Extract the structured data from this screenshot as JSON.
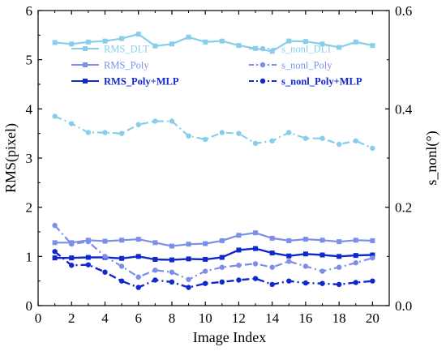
{
  "colors": {
    "dlt": "#87CEEB",
    "poly": "#7B8FE8",
    "polymlp": "#1028CC"
  },
  "chart_data": {
    "type": "line",
    "xlabel": "Image Index",
    "ylabel_left": "RMS(pixel)",
    "ylabel_right": "s_nonl(°)",
    "x": [
      1,
      2,
      3,
      4,
      5,
      6,
      7,
      8,
      9,
      10,
      11,
      12,
      13,
      14,
      15,
      16,
      17,
      18,
      19,
      20
    ],
    "xlim": [
      0,
      21
    ],
    "ylim_left": [
      0,
      6
    ],
    "ylim_right": [
      0,
      0.6
    ],
    "x_ticks": [
      "0",
      "2",
      "4",
      "6",
      "8",
      "10",
      "12",
      "14",
      "16",
      "18",
      "20"
    ],
    "y_ticks_left": [
      "0",
      "1",
      "2",
      "3",
      "4",
      "5",
      "6"
    ],
    "y_ticks_right": [
      "0.0",
      "0.2",
      "0.4",
      "0.6"
    ],
    "grid": false,
    "legend_position": "top",
    "series": [
      {
        "name": "RMS_DLT",
        "axis": "left",
        "style": "solid",
        "marker": "square",
        "color_key": "dlt",
        "values": [
          5.35,
          5.32,
          5.36,
          5.38,
          5.43,
          5.52,
          5.28,
          5.32,
          5.46,
          5.36,
          5.38,
          5.29,
          5.23,
          5.17,
          5.38,
          5.37,
          5.32,
          5.25,
          5.36,
          5.29
        ]
      },
      {
        "name": "RMS_Poly",
        "axis": "left",
        "style": "solid",
        "marker": "square",
        "color_key": "poly",
        "values": [
          1.28,
          1.28,
          1.33,
          1.31,
          1.33,
          1.35,
          1.28,
          1.21,
          1.25,
          1.26,
          1.32,
          1.43,
          1.48,
          1.37,
          1.32,
          1.35,
          1.33,
          1.3,
          1.33,
          1.32
        ]
      },
      {
        "name": "RMS_Poly+MLP",
        "axis": "left",
        "style": "solid",
        "marker": "square",
        "color_key": "polymlp",
        "values": [
          0.97,
          0.97,
          0.98,
          0.98,
          0.96,
          1.0,
          0.94,
          0.93,
          0.95,
          0.94,
          0.98,
          1.13,
          1.16,
          1.07,
          1.01,
          1.05,
          1.03,
          1.0,
          1.02,
          1.03
        ]
      },
      {
        "name": "s_nonl_DLT",
        "axis": "right",
        "style": "dashdot",
        "marker": "circle",
        "color_key": "dlt",
        "values": [
          0.385,
          0.37,
          0.352,
          0.352,
          0.35,
          0.368,
          0.375,
          0.375,
          0.345,
          0.338,
          0.352,
          0.35,
          0.33,
          0.335,
          0.352,
          0.34,
          0.34,
          0.328,
          0.335,
          0.32
        ]
      },
      {
        "name": "s_nonl_Poly",
        "axis": "right",
        "style": "dashdot",
        "marker": "circle",
        "color_key": "poly",
        "values": [
          0.163,
          0.125,
          0.13,
          0.1,
          0.08,
          0.058,
          0.072,
          0.068,
          0.053,
          0.07,
          0.078,
          0.082,
          0.085,
          0.078,
          0.09,
          0.08,
          0.07,
          0.078,
          0.087,
          0.097
        ]
      },
      {
        "name": "s_nonl_Poly+MLP",
        "axis": "right",
        "style": "dashdot",
        "marker": "circle",
        "color_key": "polymlp",
        "values": [
          0.11,
          0.082,
          0.083,
          0.068,
          0.05,
          0.037,
          0.052,
          0.048,
          0.037,
          0.045,
          0.048,
          0.052,
          0.055,
          0.043,
          0.05,
          0.046,
          0.045,
          0.043,
          0.047,
          0.05
        ]
      }
    ]
  }
}
